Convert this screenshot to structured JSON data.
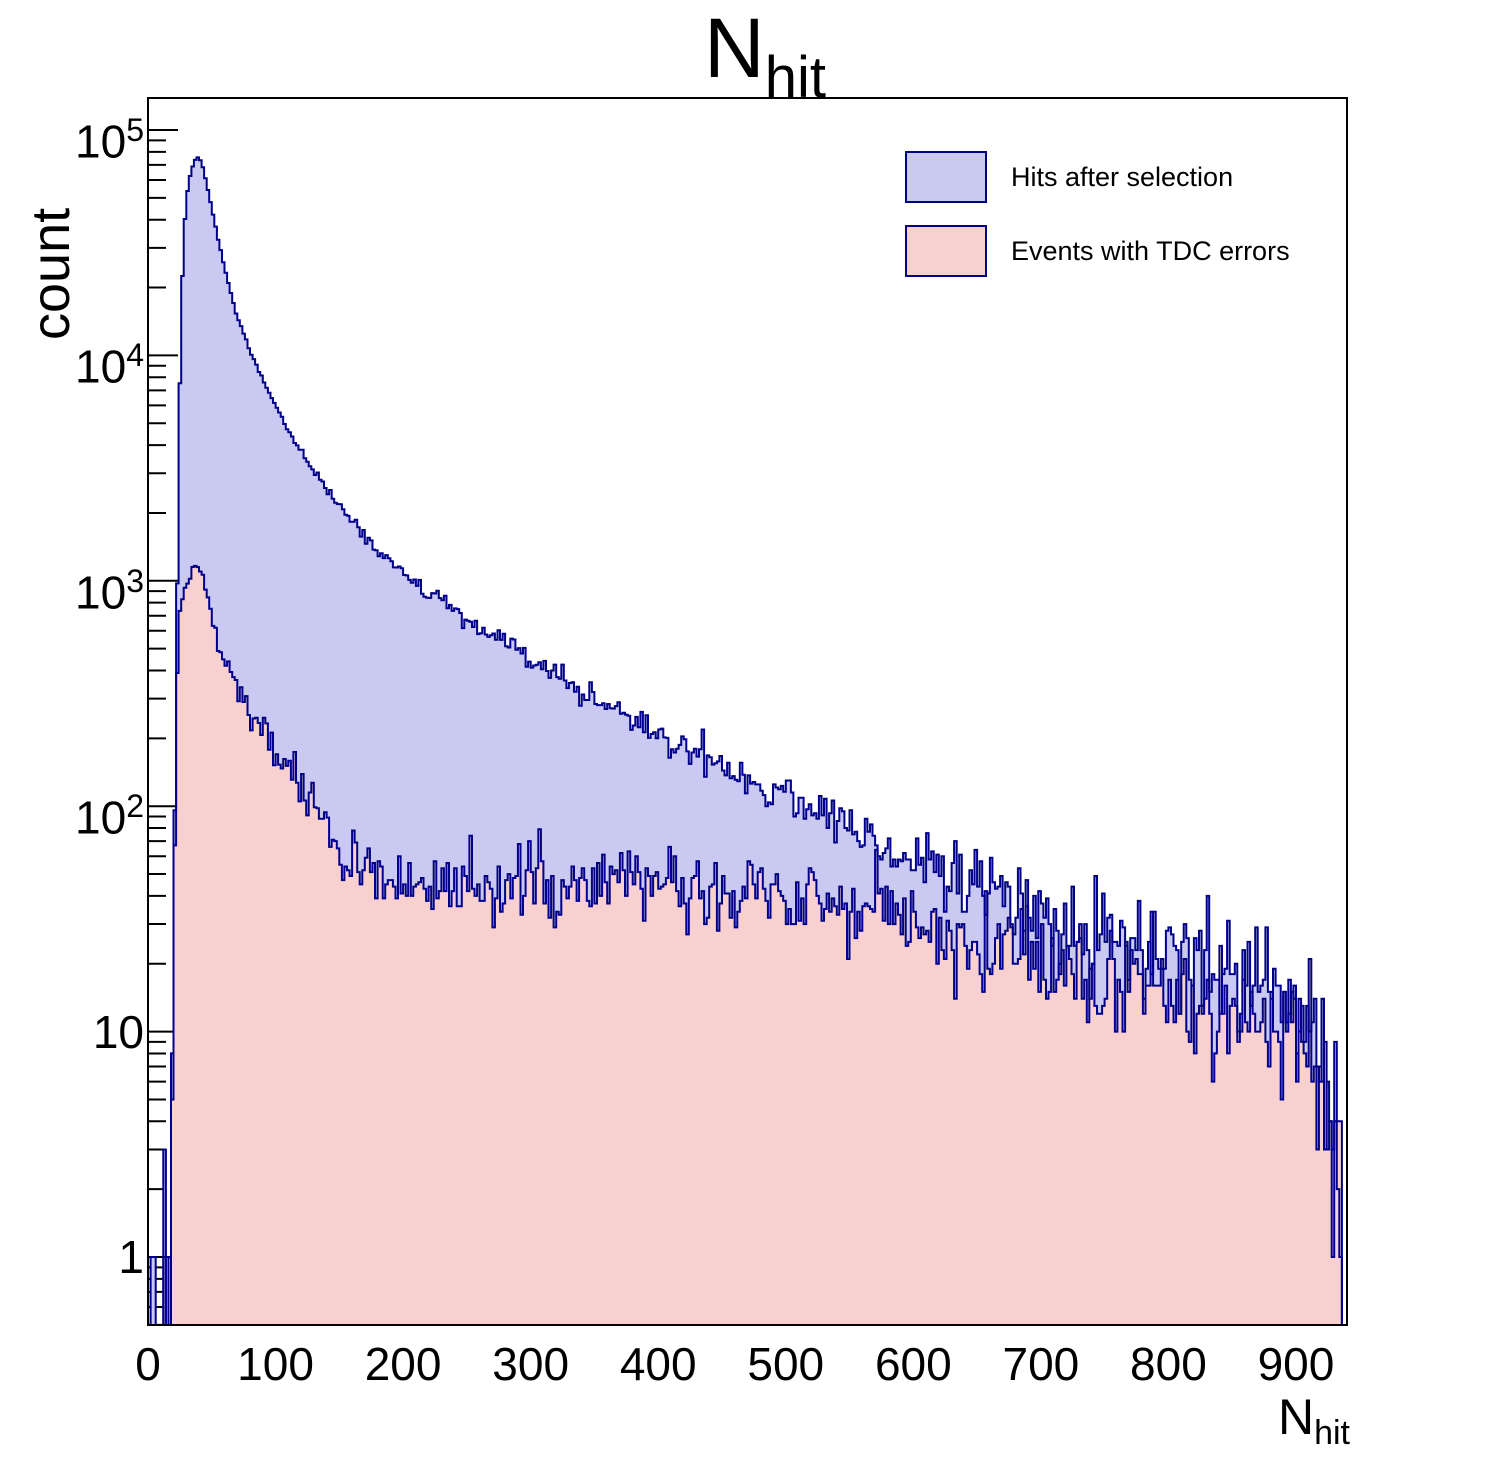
{
  "title": {
    "main": "N",
    "sub": "hit"
  },
  "y_axis": {
    "title": "count",
    "scale": "log",
    "min": 0.5,
    "max": 140000,
    "tick_labels": [
      {
        "base": "1",
        "exp": ""
      },
      {
        "base": "10",
        "exp": ""
      },
      {
        "base": "10",
        "exp": "2"
      },
      {
        "base": "10",
        "exp": "3"
      },
      {
        "base": "10",
        "exp": "4"
      },
      {
        "base": "10",
        "exp": "5"
      }
    ]
  },
  "x_axis": {
    "title_main": "N",
    "title_sub": "hit",
    "min": 0,
    "max": 940,
    "major_tick_step": 100,
    "minor_tick_step": 20,
    "tick_labels": [
      "0",
      "100",
      "200",
      "300",
      "400",
      "500",
      "600",
      "700",
      "800",
      "900"
    ]
  },
  "legend": {
    "items": [
      {
        "label": "Hits after selection",
        "fill": "#c9c9f2",
        "border": "#00008b"
      },
      {
        "label": "Events with TDC errors",
        "fill": "#f9d0d0",
        "border": "#00008b"
      }
    ]
  },
  "colors": {
    "frame": "#000000",
    "hist_line": "#00008b"
  },
  "chart_data": {
    "type": "histogram",
    "title": "N_hit",
    "xlabel": "N_hit",
    "ylabel": "count",
    "x_range": [
      0,
      940
    ],
    "bin_width": 2,
    "y_scale": "log",
    "ylim": [
      0.5,
      140000
    ],
    "note": "Counts read from plot; envelope_points are [N_hit, count] samples of each histogram's smoothed height, rendered as 2-wide bins with Poisson-like jitter.",
    "noise": {
      "seed": 12345,
      "scale": 1.25
    },
    "series": [
      {
        "name": "Hits after selection",
        "fill": "#c9c9f2",
        "line": "#00008b",
        "isolated_bins": [
          [
            3,
            1
          ],
          [
            5,
            1
          ],
          [
            12,
            3
          ],
          [
            16,
            1
          ]
        ],
        "envelope_points": [
          [
            18,
            2
          ],
          [
            19,
            8
          ],
          [
            20,
            25
          ],
          [
            21,
            90
          ],
          [
            22,
            300
          ],
          [
            23,
            1000
          ],
          [
            24,
            3000
          ],
          [
            25,
            7500
          ],
          [
            26,
            14500
          ],
          [
            27,
            22500
          ],
          [
            28,
            31500
          ],
          [
            29,
            40000
          ],
          [
            30,
            47500
          ],
          [
            31,
            53500
          ],
          [
            32,
            58500
          ],
          [
            33,
            62500
          ],
          [
            34,
            66000
          ],
          [
            35,
            69000
          ],
          [
            36,
            71500
          ],
          [
            37,
            73500
          ],
          [
            38,
            74800
          ],
          [
            39,
            75500
          ],
          [
            40,
            75000
          ],
          [
            41,
            73500
          ],
          [
            42,
            71000
          ],
          [
            43,
            68000
          ],
          [
            44,
            64500
          ],
          [
            45,
            61000
          ],
          [
            46,
            57500
          ],
          [
            47,
            54000
          ],
          [
            48,
            50500
          ],
          [
            49,
            47500
          ],
          [
            50,
            44500
          ],
          [
            52,
            39500
          ],
          [
            54,
            35000
          ],
          [
            56,
            31000
          ],
          [
            58,
            27500
          ],
          [
            60,
            24500
          ],
          [
            63,
            20800
          ],
          [
            66,
            17900
          ],
          [
            69,
            15600
          ],
          [
            72,
            13800
          ],
          [
            76,
            11900
          ],
          [
            80,
            10400
          ],
          [
            84,
            9200
          ],
          [
            88,
            8200
          ],
          [
            92,
            7300
          ],
          [
            96,
            6600
          ],
          [
            100,
            6000
          ],
          [
            106,
            5100
          ],
          [
            112,
            4450
          ],
          [
            118,
            3900
          ],
          [
            124,
            3450
          ],
          [
            130,
            3050
          ],
          [
            137,
            2700
          ],
          [
            144,
            2400
          ],
          [
            151,
            2130
          ],
          [
            158,
            1900
          ],
          [
            165,
            1700
          ],
          [
            172,
            1530
          ],
          [
            180,
            1370
          ],
          [
            188,
            1240
          ],
          [
            196,
            1130
          ],
          [
            205,
            1020
          ],
          [
            214,
            930
          ],
          [
            224,
            845
          ],
          [
            234,
            770
          ],
          [
            244,
            700
          ],
          [
            255,
            635
          ],
          [
            266,
            580
          ],
          [
            278,
            525
          ],
          [
            290,
            478
          ],
          [
            302,
            435
          ],
          [
            315,
            392
          ],
          [
            328,
            355
          ],
          [
            342,
            320
          ],
          [
            356,
            288
          ],
          [
            370,
            260
          ],
          [
            384,
            235
          ],
          [
            398,
            212
          ],
          [
            412,
            192
          ],
          [
            427,
            174
          ],
          [
            442,
            158
          ],
          [
            458,
            143
          ],
          [
            474,
            130
          ],
          [
            490,
            118
          ],
          [
            506,
            107
          ],
          [
            522,
            97
          ],
          [
            538,
            88
          ],
          [
            554,
            79
          ],
          [
            570,
            71
          ],
          [
            586,
            64
          ],
          [
            602,
            58
          ],
          [
            618,
            52
          ],
          [
            634,
            47
          ],
          [
            650,
            43
          ],
          [
            666,
            39
          ],
          [
            682,
            36
          ],
          [
            698,
            33
          ],
          [
            714,
            30
          ],
          [
            730,
            28
          ],
          [
            746,
            26
          ],
          [
            762,
            24
          ],
          [
            778,
            23
          ],
          [
            794,
            21
          ],
          [
            810,
            20
          ],
          [
            826,
            19
          ],
          [
            842,
            18
          ],
          [
            858,
            17
          ],
          [
            874,
            16
          ],
          [
            890,
            15
          ],
          [
            900,
            14
          ],
          [
            906,
            13
          ],
          [
            912,
            11
          ],
          [
            917,
            9
          ],
          [
            921,
            7
          ],
          [
            925,
            5
          ],
          [
            928,
            4
          ],
          [
            931,
            3
          ],
          [
            934,
            2
          ],
          [
            936,
            1
          ]
        ]
      },
      {
        "name": "Events with TDC errors",
        "fill": "#f9d0d0",
        "line": "#00008b",
        "isolated_bins": [
          [
            12,
            1
          ]
        ],
        "envelope_points": [
          [
            18,
            3
          ],
          [
            19,
            8
          ],
          [
            20,
            20
          ],
          [
            21,
            60
          ],
          [
            22,
            160
          ],
          [
            23,
            380
          ],
          [
            24,
            580
          ],
          [
            25,
            700
          ],
          [
            26,
            780
          ],
          [
            27,
            830
          ],
          [
            28,
            870
          ],
          [
            29,
            905
          ],
          [
            30,
            940
          ],
          [
            31,
            975
          ],
          [
            32,
            1010
          ],
          [
            33,
            1045
          ],
          [
            34,
            1080
          ],
          [
            35,
            1115
          ],
          [
            36,
            1150
          ],
          [
            37,
            1175
          ],
          [
            38,
            1195
          ],
          [
            39,
            1205
          ],
          [
            40,
            1195
          ],
          [
            41,
            1165
          ],
          [
            42,
            1120
          ],
          [
            43,
            1065
          ],
          [
            44,
            1010
          ],
          [
            45,
            950
          ],
          [
            46,
            890
          ],
          [
            47,
            835
          ],
          [
            48,
            785
          ],
          [
            49,
            735
          ],
          [
            50,
            690
          ],
          [
            52,
            610
          ],
          [
            54,
            550
          ],
          [
            56,
            510
          ],
          [
            58,
            470
          ],
          [
            60,
            440
          ],
          [
            63,
            395
          ],
          [
            66,
            360
          ],
          [
            69,
            330
          ],
          [
            72,
            305
          ],
          [
            76,
            283
          ],
          [
            80,
            265
          ],
          [
            84,
            245
          ],
          [
            88,
            225
          ],
          [
            92,
            207
          ],
          [
            96,
            188
          ],
          [
            100,
            170
          ],
          [
            105,
            154
          ],
          [
            110,
            141
          ],
          [
            115,
            129
          ],
          [
            120,
            117
          ],
          [
            126,
            104
          ],
          [
            132,
            93
          ],
          [
            138,
            84
          ],
          [
            144,
            75
          ],
          [
            150,
            66
          ],
          [
            157,
            59
          ],
          [
            164,
            55
          ],
          [
            171,
            53
          ],
          [
            178,
            51
          ],
          [
            186,
            49
          ],
          [
            194,
            47
          ],
          [
            202,
            46
          ],
          [
            212,
            45
          ],
          [
            235,
            45
          ],
          [
            260,
            45
          ],
          [
            285,
            44
          ],
          [
            310,
            45
          ],
          [
            335,
            44
          ],
          [
            360,
            45
          ],
          [
            385,
            44
          ],
          [
            410,
            44
          ],
          [
            435,
            43
          ],
          [
            460,
            43
          ],
          [
            485,
            42
          ],
          [
            510,
            41
          ],
          [
            535,
            39
          ],
          [
            552,
            38
          ],
          [
            562,
            36
          ],
          [
            572,
            34
          ],
          [
            582,
            32
          ],
          [
            592,
            31
          ],
          [
            602,
            29
          ],
          [
            617,
            28
          ],
          [
            632,
            26
          ],
          [
            647,
            24
          ],
          [
            662,
            23
          ],
          [
            677,
            21
          ],
          [
            692,
            20
          ],
          [
            707,
            19
          ],
          [
            722,
            18
          ],
          [
            737,
            17
          ],
          [
            752,
            17
          ],
          [
            767,
            16
          ],
          [
            782,
            15
          ],
          [
            797,
            14
          ],
          [
            812,
            14
          ],
          [
            827,
            13
          ],
          [
            842,
            12
          ],
          [
            857,
            12
          ],
          [
            872,
            11
          ],
          [
            887,
            10
          ],
          [
            900,
            10
          ],
          [
            906,
            9
          ],
          [
            912,
            8
          ],
          [
            917,
            7
          ],
          [
            921,
            6
          ],
          [
            925,
            5
          ],
          [
            928,
            4
          ],
          [
            931,
            3
          ],
          [
            934,
            2
          ],
          [
            936,
            1
          ]
        ]
      }
    ]
  }
}
